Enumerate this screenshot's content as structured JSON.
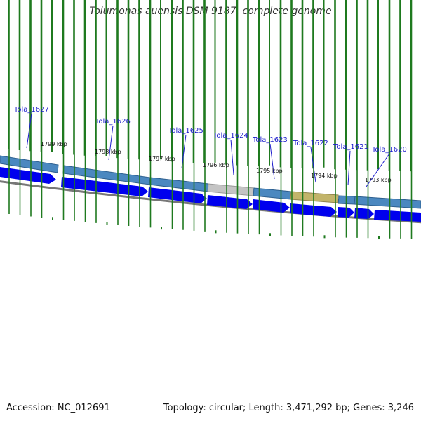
{
  "title": "Tolumonas auensis DSM 9187, complete genome",
  "footer": {
    "accession": "Accession: NC_012691",
    "topology": "Topology: circular; Length: 3,471,292 bp; Genes: 3,246"
  },
  "colors": {
    "background": "#ffffff",
    "cds_arrow": "#0000ee",
    "feature_band_default": "#4b88c0",
    "feature_band_grey": "#c4c4c4",
    "feature_band_olive": "#c2b46a",
    "tick_green": "#1f7a1f",
    "backbone_grey": "#777777",
    "label_blue": "#1a1acc"
  },
  "genes": [
    {
      "name": "Tola_1627"
    },
    {
      "name": "Tola_1626"
    },
    {
      "name": "Tola_1625"
    },
    {
      "name": "Tola_1624"
    },
    {
      "name": "Tola_1623"
    },
    {
      "name": "Tola_1622"
    },
    {
      "name": "Tola_1621"
    },
    {
      "name": "Tola_1620"
    }
  ],
  "kbp_labels": [
    "1799 kbp",
    "1798 kbp",
    "1797 kbp",
    "1796 kbp",
    "1795 kbp",
    "1794 kbp",
    "1793 kbp"
  ]
}
